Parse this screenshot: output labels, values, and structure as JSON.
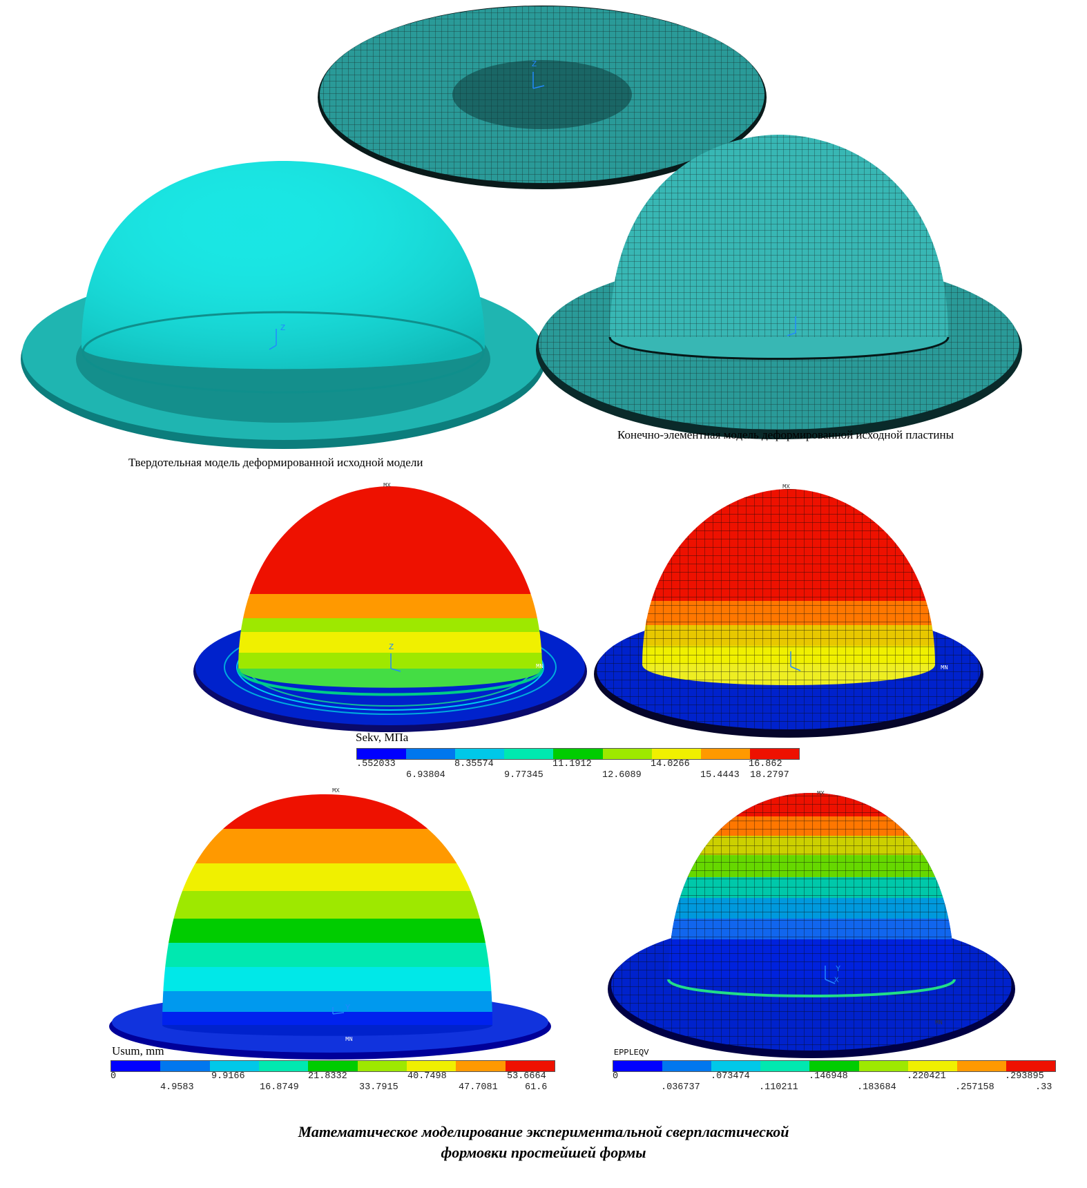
{
  "captions": {
    "solid_model": "Твердотельная модель деформированной исходной модели",
    "fe_model": "Конечно-элементная модель деформированной исходной пластины"
  },
  "legends": {
    "sekv": {
      "title": "Sekv, МПа",
      "upper_labels": [
        ".552033",
        "8.35574",
        "11.1912",
        "14.0266",
        "16.862"
      ],
      "lower_labels": [
        "6.93804",
        "9.77345",
        "12.6089",
        "15.4443",
        "18.2797"
      ]
    },
    "usum": {
      "title": "Usum,  mm",
      "upper_labels": [
        "0",
        "9.9166",
        "21.8332",
        "40.7498",
        "53.6664"
      ],
      "lower_labels": [
        "4.9583",
        "16.8749",
        "33.7915",
        "47.7081",
        "61.6"
      ]
    },
    "eppleqv": {
      "title": "EPPLEQV",
      "upper_labels": [
        "0",
        ".073474",
        ".146948",
        ".220421",
        ".293895"
      ],
      "lower_labels": [
        ".036737",
        ".110211",
        ".183684",
        ".257158",
        ".33"
      ]
    }
  },
  "contour_colors": [
    "#0000ff",
    "#0077ee",
    "#00c8e8",
    "#00e8b0",
    "#00cc00",
    "#9ee800",
    "#f0f000",
    "#ff9900",
    "#ee1100"
  ],
  "footer": {
    "line1": "Математическое моделирование экспериментальной  сверпластической",
    "line2": "формовки простейшей формы"
  },
  "markers": {
    "mx": "MX",
    "mn": "MN",
    "axis_z": "Z",
    "axis_y": "Y",
    "axis_x": "X"
  }
}
